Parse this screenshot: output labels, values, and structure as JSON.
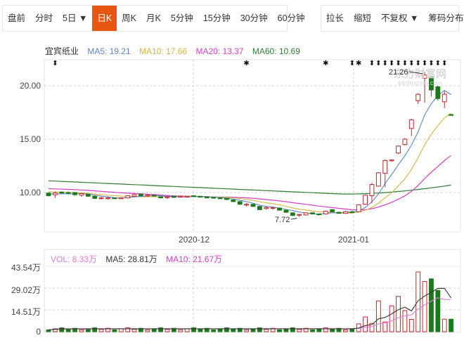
{
  "toolbar": {
    "left": [
      {
        "label": "盘前",
        "active": false
      },
      {
        "label": "分时",
        "active": false
      },
      {
        "label": "5日 ▼",
        "active": false
      },
      {
        "label": "日K",
        "active": true
      },
      {
        "label": "周K",
        "active": false
      },
      {
        "label": "月K",
        "active": false
      },
      {
        "label": "5分钟",
        "active": false
      },
      {
        "label": "15分钟",
        "active": false
      },
      {
        "label": "30分钟",
        "active": false
      },
      {
        "label": "60分钟",
        "active": false
      }
    ],
    "right": [
      {
        "label": "拉长"
      },
      {
        "label": "缩短"
      },
      {
        "label": "不复权 ▼"
      },
      {
        "label": "筹码分布"
      }
    ]
  },
  "price_legend": {
    "name": "宜宾纸业",
    "ma5": "MA5: 19.21",
    "ma10": "MA10: 17.66",
    "ma20": "MA20: 13.37",
    "ma60": "MA60: 10.69"
  },
  "volume_legend": {
    "vol": "VOL: 8.33万",
    "ma5": "MA5: 28.81万",
    "ma10": "MA10: 21.67万"
  },
  "colors": {
    "up": "#c0272d",
    "down": "#1a7a1a",
    "ma5": "#5b86c5",
    "ma10": "#d6b441",
    "ma20": "#d63fc7",
    "ma60": "#2e7d32",
    "vol_ma5": "#333333",
    "vol_ma10": "#e07ad8",
    "accent": "#e8560f"
  },
  "annotations": {
    "high": "21.26",
    "low": "7.72",
    "watermark": "东方财富网 eastmoney.com"
  },
  "chart_data": [
    {
      "type": "candlestick",
      "title": "宜宾纸业 日K",
      "y_ticks": [
        "20.00",
        "15.00",
        "10.00"
      ],
      "x_ticks": [
        "2020-12",
        "2021-01"
      ],
      "ylim": [
        6.5,
        22.5
      ],
      "grid": true,
      "series_ma": [
        {
          "name": "MA5",
          "last": 19.21
        },
        {
          "name": "MA10",
          "last": 17.66
        },
        {
          "name": "MA20",
          "last": 13.37
        },
        {
          "name": "MA60",
          "last": 10.69
        }
      ],
      "candles": [
        {
          "o": 9.95,
          "h": 10.0,
          "l": 9.65,
          "c": 9.7
        },
        {
          "o": 9.8,
          "h": 10.1,
          "l": 9.5,
          "c": 9.95
        },
        {
          "o": 10.05,
          "h": 10.1,
          "l": 9.9,
          "c": 9.95
        },
        {
          "o": 10.0,
          "h": 10.1,
          "l": 9.85,
          "c": 9.95
        },
        {
          "o": 10.0,
          "h": 10.05,
          "l": 9.7,
          "c": 9.8
        },
        {
          "o": 9.75,
          "h": 9.95,
          "l": 9.6,
          "c": 9.9
        },
        {
          "o": 9.85,
          "h": 9.9,
          "l": 9.6,
          "c": 9.65
        },
        {
          "o": 9.65,
          "h": 9.7,
          "l": 9.4,
          "c": 9.45
        },
        {
          "o": 9.5,
          "h": 9.6,
          "l": 9.35,
          "c": 9.5
        },
        {
          "o": 9.5,
          "h": 9.6,
          "l": 9.35,
          "c": 9.5
        },
        {
          "o": 9.5,
          "h": 9.55,
          "l": 9.4,
          "c": 9.45
        },
        {
          "o": 9.5,
          "h": 9.55,
          "l": 9.4,
          "c": 9.5
        },
        {
          "o": 9.5,
          "h": 9.75,
          "l": 9.45,
          "c": 9.7
        },
        {
          "o": 9.65,
          "h": 9.9,
          "l": 9.6,
          "c": 9.8
        },
        {
          "o": 9.85,
          "h": 9.9,
          "l": 9.65,
          "c": 9.7
        },
        {
          "o": 9.7,
          "h": 9.85,
          "l": 9.6,
          "c": 9.75
        },
        {
          "o": 9.75,
          "h": 9.8,
          "l": 9.65,
          "c": 9.7
        },
        {
          "o": 9.6,
          "h": 9.65,
          "l": 9.45,
          "c": 9.5
        },
        {
          "o": 9.6,
          "h": 9.7,
          "l": 9.4,
          "c": 9.6
        },
        {
          "o": 9.65,
          "h": 9.7,
          "l": 9.5,
          "c": 9.55
        },
        {
          "o": 9.6,
          "h": 9.7,
          "l": 9.55,
          "c": 9.65
        },
        {
          "o": 9.65,
          "h": 9.7,
          "l": 9.6,
          "c": 9.65
        },
        {
          "o": 9.7,
          "h": 9.75,
          "l": 9.6,
          "c": 9.65
        },
        {
          "o": 9.65,
          "h": 9.7,
          "l": 9.55,
          "c": 9.6
        },
        {
          "o": 9.6,
          "h": 9.65,
          "l": 9.45,
          "c": 9.5
        },
        {
          "o": 9.55,
          "h": 9.6,
          "l": 9.45,
          "c": 9.5
        },
        {
          "o": 9.5,
          "h": 9.55,
          "l": 9.4,
          "c": 9.45
        },
        {
          "o": 9.45,
          "h": 9.5,
          "l": 9.3,
          "c": 9.35
        },
        {
          "o": 9.3,
          "h": 9.35,
          "l": 9.1,
          "c": 9.15
        },
        {
          "o": 9.15,
          "h": 9.2,
          "l": 8.85,
          "c": 8.9
        },
        {
          "o": 8.85,
          "h": 9.0,
          "l": 8.7,
          "c": 8.9
        },
        {
          "o": 8.9,
          "h": 8.95,
          "l": 8.65,
          "c": 8.7
        },
        {
          "o": 8.7,
          "h": 8.75,
          "l": 8.35,
          "c": 8.4
        },
        {
          "o": 8.5,
          "h": 8.7,
          "l": 8.4,
          "c": 8.6
        },
        {
          "o": 8.55,
          "h": 8.7,
          "l": 8.4,
          "c": 8.6
        },
        {
          "o": 8.55,
          "h": 8.6,
          "l": 8.3,
          "c": 8.35
        },
        {
          "o": 8.35,
          "h": 8.4,
          "l": 8.1,
          "c": 8.15
        },
        {
          "o": 8.1,
          "h": 8.15,
          "l": 7.8,
          "c": 7.85
        },
        {
          "o": 7.9,
          "h": 8.0,
          "l": 7.72,
          "c": 7.95
        },
        {
          "o": 7.9,
          "h": 8.15,
          "l": 7.85,
          "c": 8.1
        },
        {
          "o": 8.1,
          "h": 8.15,
          "l": 7.95,
          "c": 8.0
        },
        {
          "o": 8.0,
          "h": 8.05,
          "l": 7.85,
          "c": 7.95
        },
        {
          "o": 8.0,
          "h": 8.3,
          "l": 7.95,
          "c": 8.25
        },
        {
          "o": 8.4,
          "h": 8.45,
          "l": 8.15,
          "c": 8.2
        },
        {
          "o": 8.15,
          "h": 8.2,
          "l": 8.0,
          "c": 8.05
        },
        {
          "o": 8.05,
          "h": 8.3,
          "l": 8.0,
          "c": 8.2
        },
        {
          "o": 8.2,
          "h": 8.3,
          "l": 8.1,
          "c": 8.15
        },
        {
          "o": 8.2,
          "h": 8.9,
          "l": 8.15,
          "c": 8.85
        },
        {
          "o": 8.9,
          "h": 9.8,
          "l": 8.85,
          "c": 9.75
        },
        {
          "o": 9.7,
          "h": 10.9,
          "l": 9.0,
          "c": 10.75
        },
        {
          "o": 10.6,
          "h": 11.9,
          "l": 10.55,
          "c": 11.85
        },
        {
          "o": 11.8,
          "h": 13.1,
          "l": 10.5,
          "c": 13.0
        },
        {
          "o": 13.0,
          "h": 13.1,
          "l": 12.9,
          "c": 13.05
        },
        {
          "o": 13.7,
          "h": 14.4,
          "l": 13.6,
          "c": 14.35
        },
        {
          "o": 14.5,
          "h": 15.1,
          "l": 14.4,
          "c": 15.0
        },
        {
          "o": 16.0,
          "h": 16.9,
          "l": 15.3,
          "c": 16.8
        },
        {
          "o": 18.6,
          "h": 19.3,
          "l": 18.3,
          "c": 19.2
        },
        {
          "o": 20.7,
          "h": 21.26,
          "l": 18.4,
          "c": 21.0
        },
        {
          "o": 20.8,
          "h": 20.9,
          "l": 19.0,
          "c": 19.6
        },
        {
          "o": 19.9,
          "h": 20.0,
          "l": 18.6,
          "c": 18.8
        },
        {
          "o": 18.5,
          "h": 19.5,
          "l": 17.9,
          "c": 19.2
        },
        {
          "o": 17.3,
          "h": 17.35,
          "l": 17.2,
          "c": 17.25
        }
      ]
    },
    {
      "type": "bar",
      "title": "VOL",
      "y_ticks": [
        "43.54万",
        "29.02万",
        "14.51万",
        "0"
      ],
      "ylim": [
        0,
        46
      ],
      "unit": "万",
      "last_values": {
        "vol": 8.33,
        "ma5": 28.81,
        "ma10": 21.67
      }
    }
  ]
}
